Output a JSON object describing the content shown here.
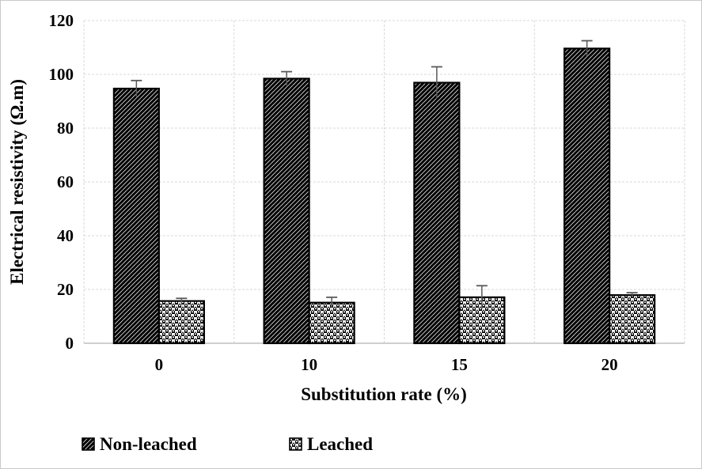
{
  "figure": {
    "background": "#ffffff",
    "border_color": "#c9c9c9"
  },
  "chart_data": {
    "type": "bar",
    "title": "",
    "xlabel": "Substitution rate (%)",
    "ylabel": "Electrical resistivity (Ω.m)",
    "categories": [
      "0",
      "10",
      "15",
      "20"
    ],
    "series": [
      {
        "name": "Non-leached",
        "pattern": "diagonal-hatch",
        "values": [
          94.7,
          98.4,
          96.9,
          109.6
        ],
        "errors": [
          3.0,
          2.6,
          5.9,
          2.9
        ]
      },
      {
        "name": "Leached",
        "pattern": "spheres",
        "values": [
          15.7,
          15.1,
          17.1,
          17.9
        ],
        "errors": [
          1.0,
          2.0,
          4.3,
          0.9
        ]
      }
    ],
    "ylim": [
      0,
      120
    ],
    "yticks": [
      0,
      20,
      40,
      60,
      80,
      100,
      120
    ],
    "grid": true,
    "legend_position": "bottom-left",
    "colors": {
      "bar_fill": "#ffffff",
      "bar_stroke": "#000000",
      "error_bar": "#595959",
      "gridline": "#d9d9d9",
      "axis_line": "#bfbfbf",
      "text": "#000000"
    }
  }
}
